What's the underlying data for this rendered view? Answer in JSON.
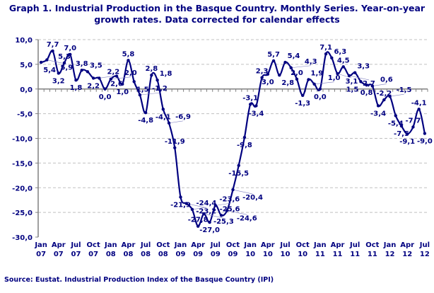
{
  "chart_data": {
    "type": "line",
    "title": "Graph 1. Industrial Production in the Basque Country. Monthly Series. Year-on-year growth rates. Data corrected for calendar effects",
    "title_lines": [
      "Graph 1. Industrial Production in the Basque Country. Monthly Series. Year-on-year",
      "growth rates. Data corrected for calendar effects"
    ],
    "xlabel": "",
    "ylabel": "",
    "ylim": [
      -30,
      10
    ],
    "y_ticks": [
      "10,0",
      "5,0",
      "0,0",
      "-5,0",
      "-10,0",
      "-15,0",
      "-20,0",
      "-25,0",
      "-30,0"
    ],
    "x_tick_labels": [
      [
        "Jan",
        "07"
      ],
      [
        "Apr",
        "07"
      ],
      [
        "Jul",
        "07"
      ],
      [
        "Oct",
        "07"
      ],
      [
        "Jan",
        "08"
      ],
      [
        "Apr",
        "08"
      ],
      [
        "Jul",
        "08"
      ],
      [
        "Oct",
        "08"
      ],
      [
        "Jan",
        "09"
      ],
      [
        "Apr",
        "09"
      ],
      [
        "Jul",
        "09"
      ],
      [
        "Oct",
        "09"
      ],
      [
        "Jan",
        "10"
      ],
      [
        "Apr",
        "10"
      ],
      [
        "Jul",
        "10"
      ],
      [
        "Oct",
        "10"
      ],
      [
        "Jan",
        "11"
      ],
      [
        "Apr",
        "11"
      ],
      [
        "Jul",
        "11"
      ],
      [
        "Oct",
        "11"
      ],
      [
        "Jan",
        "12"
      ],
      [
        "Apr",
        "12"
      ],
      [
        "Jul",
        "12"
      ]
    ],
    "x_start": "Jan 07",
    "x_end": "Jul 12",
    "grid": "horizontal dashed",
    "line_color": "#000080",
    "values": [
      5.4,
      5.9,
      7.7,
      3.2,
      5.3,
      7.0,
      1.8,
      3.8,
      3.5,
      2.2,
      2.2,
      0.0,
      2.0,
      2.6,
      1.0,
      5.8,
      1.5,
      -1.2,
      -4.8,
      2.8,
      1.8,
      -4.1,
      -6.9,
      -11.9,
      -21.9,
      -23.2,
      -24.4,
      -27.8,
      -25.3,
      -27.0,
      -23.6,
      -25.6,
      -24.6,
      -20.4,
      -15.5,
      -9.8,
      -3.1,
      -3.4,
      2.3,
      3.0,
      5.7,
      2.8,
      5.4,
      4.3,
      2.0,
      -1.3,
      1.9,
      1.0,
      0.0,
      7.1,
      6.3,
      3.1,
      4.5,
      2.7,
      3.3,
      1.5,
      0.8,
      0.6,
      -3.4,
      -2.2,
      -1.5,
      -5.4,
      -7.5,
      -9.1,
      -7.7,
      -4.1,
      -9.0
    ]
  },
  "source": "Source: Eustat. Industrial Production Index of the Basque Country (IPI)"
}
